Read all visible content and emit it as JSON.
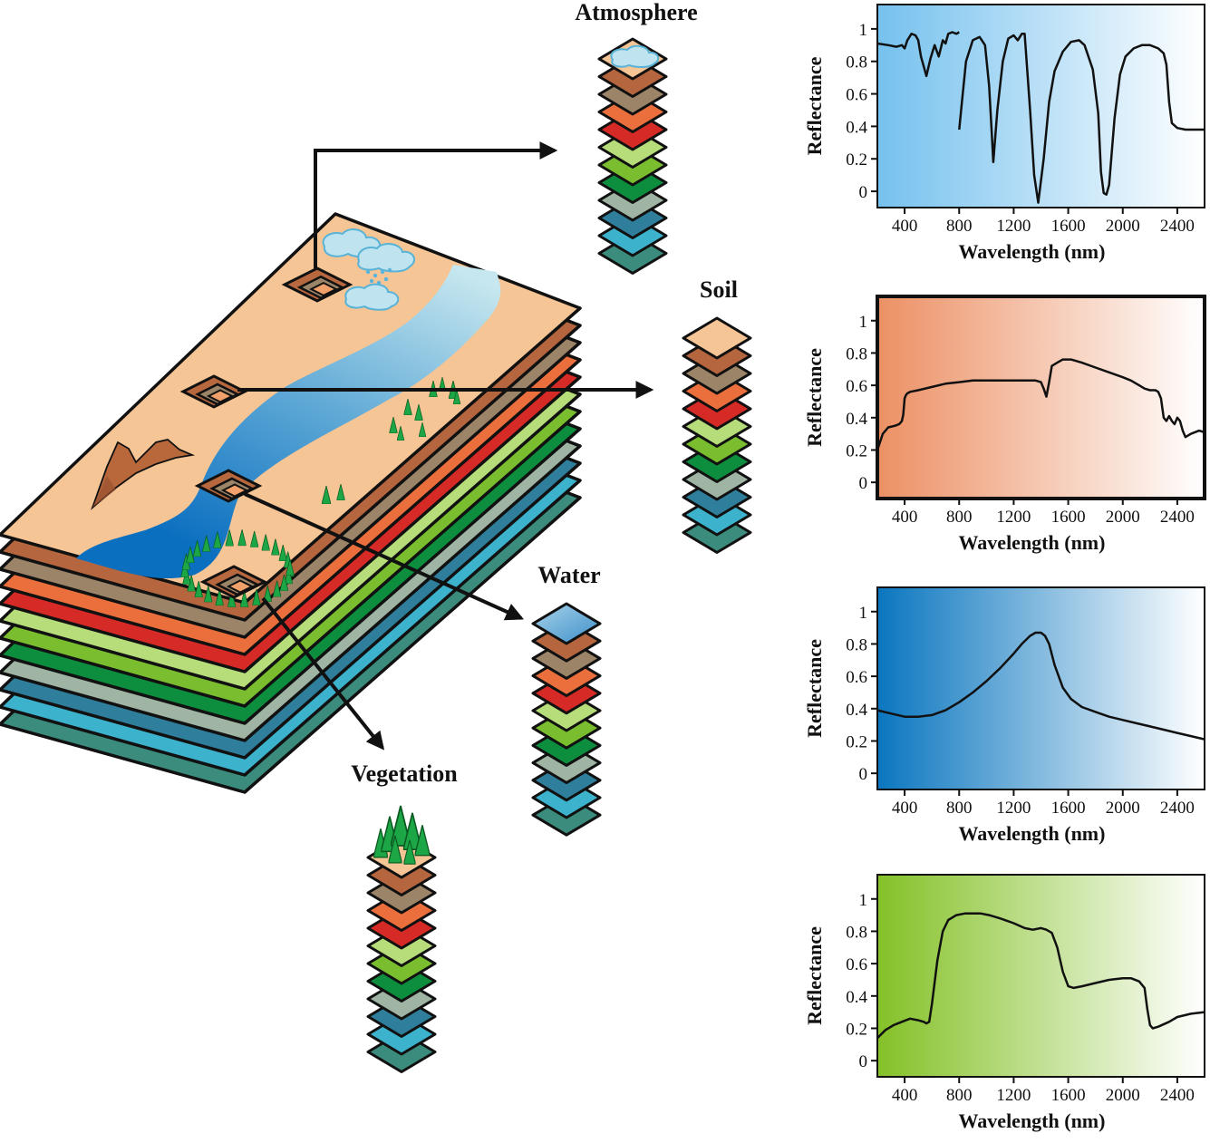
{
  "colors": {
    "soil_surface": "#f5c596",
    "river_light": "#b8e0ee",
    "river_dark": "#0b71c2",
    "tree": "#1ca645",
    "mountain": "#b8623b",
    "band_stack": [
      "#f5c596",
      "#b5663f",
      "#9b8468",
      "#ea6f3c",
      "#d62a26",
      "#b6dd79",
      "#7abe2f",
      "#0d8d3e",
      "#9fb4a2",
      "#2f7f9c",
      "#3cb2cd",
      "#3b8c7c"
    ]
  },
  "labels": {
    "atmosphere": "Atmosphere",
    "soil": "Soil",
    "water": "Water",
    "vegetation": "Vegetation"
  },
  "chart_data": [
    {
      "id": "atmosphere",
      "type": "line",
      "background": [
        "#75c1ee",
        "#ffffff"
      ],
      "xlabel": "Wavelength (nm)",
      "ylabel": "Reflectance",
      "xlim": [
        200,
        2600
      ],
      "ylim": [
        -0.1,
        1.15
      ],
      "xticks": [
        400,
        800,
        1200,
        1600,
        2000,
        2400
      ],
      "yticks": [
        0,
        0.2,
        0.4,
        0.6,
        0.8,
        1
      ],
      "ytick_labels": [
        "0",
        "0.2",
        "0.4",
        "0.6",
        "0.8",
        "1"
      ],
      "segments": [
        {
          "x": [
            200,
            280,
            340,
            380,
            400,
            420,
            450,
            480,
            500,
            520,
            560,
            590,
            620,
            650,
            680,
            700,
            720,
            750,
            780,
            800
          ],
          "y": [
            0.91,
            0.9,
            0.89,
            0.9,
            0.88,
            0.93,
            0.97,
            0.96,
            0.93,
            0.83,
            0.71,
            0.82,
            0.9,
            0.83,
            0.93,
            0.91,
            0.97,
            0.98,
            0.97,
            0.98
          ]
        },
        {
          "x": [
            800,
            820,
            850,
            900,
            950,
            990,
            1020,
            1040,
            1050,
            1080,
            1120,
            1160,
            1200,
            1230,
            1260,
            1280,
            1320,
            1350,
            1380,
            1420,
            1460,
            1500,
            1560,
            1620,
            1680,
            1720,
            1780,
            1820,
            1840,
            1860,
            1880,
            1900,
            1940,
            1980,
            2020,
            2080,
            2140,
            2200,
            2260,
            2300,
            2320,
            2340,
            2360,
            2400,
            2460,
            2560,
            2600
          ],
          "y": [
            0.38,
            0.55,
            0.8,
            0.93,
            0.95,
            0.9,
            0.65,
            0.35,
            0.18,
            0.5,
            0.8,
            0.94,
            0.96,
            0.93,
            0.97,
            0.97,
            0.5,
            0.1,
            -0.07,
            0.2,
            0.55,
            0.74,
            0.86,
            0.92,
            0.93,
            0.9,
            0.75,
            0.48,
            0.12,
            -0.01,
            -0.02,
            0.04,
            0.45,
            0.72,
            0.83,
            0.88,
            0.9,
            0.9,
            0.88,
            0.85,
            0.78,
            0.55,
            0.42,
            0.39,
            0.38,
            0.38,
            0.38
          ]
        }
      ]
    },
    {
      "id": "soil",
      "type": "line",
      "background": [
        "#ec9064",
        "#ffffff"
      ],
      "xlabel": "Wavelength (nm)",
      "ylabel": "Reflectance",
      "xlim": [
        200,
        2600
      ],
      "ylim": [
        -0.1,
        1.15
      ],
      "xticks": [
        400,
        800,
        1200,
        1600,
        2000,
        2400
      ],
      "yticks": [
        0,
        0.2,
        0.4,
        0.6,
        0.8,
        1
      ],
      "ytick_labels": [
        "0",
        "0.2",
        "0.4",
        "0.6",
        "0.8",
        "1"
      ],
      "segments": [
        {
          "x": [
            200,
            240,
            280,
            330,
            360,
            380,
            390,
            400,
            410,
            420,
            440,
            500,
            600,
            700,
            800,
            900,
            1000,
            1100,
            1200,
            1300,
            1360,
            1400,
            1420,
            1440,
            1460,
            1480,
            1520,
            1560,
            1620,
            1700,
            1800,
            1900,
            2000,
            2060,
            2120,
            2160,
            2200,
            2240,
            2260,
            2280,
            2300,
            2320,
            2340,
            2360,
            2380,
            2400,
            2420,
            2440,
            2460,
            2500,
            2560,
            2600
          ],
          "y": [
            0.2,
            0.3,
            0.34,
            0.35,
            0.36,
            0.38,
            0.42,
            0.52,
            0.54,
            0.55,
            0.56,
            0.57,
            0.59,
            0.61,
            0.62,
            0.63,
            0.63,
            0.63,
            0.63,
            0.63,
            0.63,
            0.62,
            0.58,
            0.53,
            0.62,
            0.72,
            0.74,
            0.76,
            0.76,
            0.74,
            0.71,
            0.68,
            0.65,
            0.63,
            0.6,
            0.58,
            0.57,
            0.57,
            0.56,
            0.52,
            0.4,
            0.38,
            0.41,
            0.38,
            0.36,
            0.4,
            0.38,
            0.32,
            0.28,
            0.3,
            0.32,
            0.31
          ]
        }
      ]
    },
    {
      "id": "water",
      "type": "line",
      "background": [
        "#0a76bf",
        "#ffffff"
      ],
      "xlabel": "Wavelength (nm)",
      "ylabel": "Reflectance",
      "xlim": [
        200,
        2600
      ],
      "ylim": [
        -0.1,
        1.15
      ],
      "xticks": [
        400,
        800,
        1200,
        1600,
        2000,
        2400
      ],
      "yticks": [
        0,
        0.2,
        0.4,
        0.6,
        0.8,
        1
      ],
      "ytick_labels": [
        "0",
        "0.2",
        "0.4",
        "0.6",
        "0.8",
        "1"
      ],
      "segments": [
        {
          "x": [
            200,
            300,
            400,
            500,
            600,
            700,
            800,
            900,
            1000,
            1100,
            1200,
            1260,
            1320,
            1360,
            1400,
            1430,
            1460,
            1500,
            1560,
            1620,
            1700,
            1800,
            1900,
            2000,
            2100,
            2200,
            2300,
            2400,
            2500,
            2600
          ],
          "y": [
            0.39,
            0.37,
            0.35,
            0.35,
            0.36,
            0.39,
            0.44,
            0.5,
            0.57,
            0.65,
            0.74,
            0.8,
            0.85,
            0.87,
            0.87,
            0.85,
            0.8,
            0.67,
            0.53,
            0.46,
            0.41,
            0.38,
            0.35,
            0.33,
            0.31,
            0.29,
            0.27,
            0.25,
            0.23,
            0.21
          ]
        }
      ]
    },
    {
      "id": "vegetation",
      "type": "line",
      "background": [
        "#84c127",
        "#ffffff"
      ],
      "xlabel": "Wavelength (nm)",
      "ylabel": "Reflectance",
      "xlim": [
        200,
        2600
      ],
      "ylim": [
        -0.1,
        1.15
      ],
      "xticks": [
        400,
        800,
        1200,
        1600,
        2000,
        2400
      ],
      "yticks": [
        0,
        0.2,
        0.4,
        0.6,
        0.8,
        1
      ],
      "ytick_labels": [
        "0",
        "0.2",
        "0.4",
        "0.6",
        "0.8",
        "1"
      ],
      "segments": [
        {
          "x": [
            200,
            260,
            320,
            380,
            440,
            500,
            540,
            560,
            580,
            600,
            640,
            680,
            720,
            780,
            840,
            900,
            960,
            1020,
            1100,
            1200,
            1280,
            1340,
            1400,
            1440,
            1480,
            1520,
            1560,
            1600,
            1640,
            1700,
            1800,
            1900,
            2000,
            2060,
            2120,
            2160,
            2180,
            2200,
            2220,
            2260,
            2340,
            2400,
            2500,
            2600
          ],
          "y": [
            0.14,
            0.19,
            0.22,
            0.24,
            0.26,
            0.25,
            0.24,
            0.23,
            0.24,
            0.35,
            0.62,
            0.8,
            0.87,
            0.9,
            0.91,
            0.91,
            0.91,
            0.9,
            0.88,
            0.85,
            0.82,
            0.81,
            0.82,
            0.81,
            0.79,
            0.7,
            0.55,
            0.46,
            0.45,
            0.46,
            0.48,
            0.5,
            0.51,
            0.51,
            0.49,
            0.45,
            0.32,
            0.22,
            0.2,
            0.21,
            0.24,
            0.27,
            0.29,
            0.3
          ]
        }
      ]
    }
  ]
}
